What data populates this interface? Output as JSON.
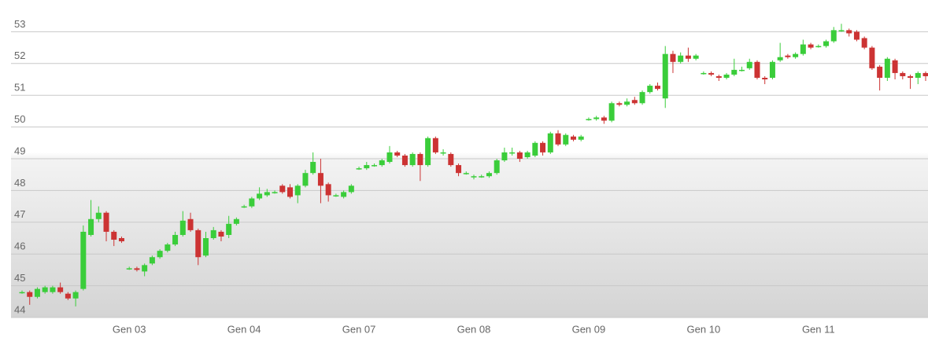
{
  "chart_data": {
    "type": "candlestick",
    "categories": [
      null,
      null,
      null,
      null,
      null,
      null,
      null,
      null,
      null,
      null,
      null,
      null,
      null,
      null,
      "Gen 03",
      null,
      null,
      null,
      null,
      null,
      null,
      null,
      null,
      null,
      null,
      null,
      null,
      null,
      null,
      "Gen 04",
      null,
      null,
      null,
      null,
      null,
      null,
      null,
      null,
      null,
      null,
      null,
      null,
      null,
      null,
      "Gen 07",
      null,
      null,
      null,
      null,
      null,
      null,
      null,
      null,
      null,
      null,
      null,
      null,
      null,
      null,
      "Gen 08",
      null,
      null,
      null,
      null,
      null,
      null,
      null,
      null,
      null,
      null,
      null,
      null,
      null,
      null,
      "Gen 09",
      null,
      null,
      null,
      null,
      null,
      null,
      null,
      null,
      null,
      null,
      null,
      null,
      null,
      null,
      "Gen 10",
      null,
      null,
      null,
      null,
      null,
      null,
      null,
      null,
      null,
      null,
      null,
      null,
      null,
      null,
      "Gen 11",
      null,
      null,
      null,
      null,
      null,
      null,
      null,
      null,
      null,
      null,
      null,
      null,
      null,
      null
    ],
    "open": [
      44.8,
      44.8,
      44.65,
      44.8,
      44.8,
      44.95,
      44.75,
      44.6,
      44.9,
      46.6,
      47.1,
      47.3,
      46.7,
      46.5,
      45.55,
      45.55,
      45.45,
      45.7,
      45.9,
      46.1,
      46.3,
      46.6,
      47.1,
      46.75,
      45.95,
      46.5,
      46.7,
      46.6,
      46.95,
      47.5,
      47.5,
      47.75,
      47.85,
      47.95,
      48.15,
      48.1,
      47.85,
      48.15,
      48.55,
      48.55,
      48.2,
      47.85,
      47.8,
      47.95,
      48.7,
      48.7,
      48.8,
      48.8,
      48.9,
      49.2,
      49.1,
      48.8,
      49.15,
      48.8,
      49.65,
      49.2,
      49.15,
      48.8,
      48.55,
      48.45,
      48.45,
      48.45,
      48.55,
      48.95,
      49.2,
      49.2,
      49.05,
      49.1,
      49.5,
      49.2,
      49.8,
      49.45,
      49.7,
      49.6,
      50.25,
      50.25,
      50.3,
      50.2,
      50.75,
      50.7,
      50.85,
      50.75,
      51.1,
      51.3,
      50.9,
      52.3,
      52.05,
      52.25,
      52.15,
      51.7,
      51.7,
      51.6,
      51.55,
      51.65,
      51.8,
      51.85,
      52.05,
      51.55,
      51.55,
      52.1,
      52.25,
      52.2,
      52.3,
      52.6,
      52.55,
      52.55,
      52.7,
      53.05,
      53.05,
      53.0,
      52.8,
      52.5,
      51.9,
      51.55,
      52.1,
      51.7,
      51.6,
      51.55,
      51.7
    ],
    "high": [
      44.85,
      44.85,
      44.95,
      45.0,
      45.0,
      45.1,
      44.8,
      44.85,
      46.9,
      47.7,
      47.5,
      47.35,
      46.75,
      46.55,
      45.6,
      45.6,
      45.7,
      45.95,
      46.15,
      46.35,
      46.7,
      47.35,
      47.3,
      46.8,
      46.7,
      46.85,
      46.75,
      47.2,
      47.15,
      47.55,
      47.8,
      48.1,
      48.05,
      48.0,
      48.2,
      48.2,
      48.2,
      48.65,
      49.2,
      49.0,
      48.25,
      47.9,
      48.0,
      48.2,
      48.75,
      48.9,
      48.85,
      49.0,
      49.4,
      49.25,
      49.15,
      49.2,
      49.2,
      49.7,
      49.7,
      49.3,
      49.2,
      48.85,
      48.6,
      48.5,
      48.5,
      48.6,
      49.0,
      49.35,
      49.35,
      49.25,
      49.25,
      49.55,
      49.55,
      49.85,
      49.9,
      49.8,
      49.75,
      49.75,
      50.3,
      50.35,
      50.35,
      50.8,
      50.8,
      50.9,
      50.95,
      51.15,
      51.35,
      51.4,
      52.55,
      52.4,
      52.35,
      52.5,
      52.3,
      51.75,
      51.75,
      51.65,
      51.7,
      52.15,
      51.9,
      52.15,
      52.1,
      51.6,
      52.1,
      52.65,
      52.3,
      52.35,
      52.75,
      52.65,
      52.6,
      52.75,
      53.15,
      53.25,
      53.1,
      53.05,
      52.85,
      52.55,
      51.95,
      52.2,
      52.15,
      51.75,
      51.65,
      51.75,
      51.75
    ],
    "low": [
      44.75,
      44.4,
      44.6,
      44.75,
      44.75,
      44.75,
      44.55,
      44.35,
      44.85,
      46.55,
      47.0,
      46.4,
      46.25,
      46.35,
      45.5,
      45.45,
      45.3,
      45.65,
      45.85,
      46.05,
      46.25,
      46.55,
      46.7,
      45.65,
      45.9,
      46.45,
      46.4,
      46.5,
      46.9,
      47.45,
      47.45,
      47.7,
      47.8,
      47.9,
      47.9,
      47.75,
      47.6,
      48.1,
      48.5,
      47.6,
      47.65,
      47.8,
      47.75,
      47.9,
      48.65,
      48.65,
      48.75,
      48.75,
      48.85,
      49.05,
      48.75,
      48.75,
      48.3,
      48.75,
      49.15,
      49.1,
      48.75,
      48.45,
      48.5,
      48.35,
      48.4,
      48.4,
      48.5,
      48.9,
      49.1,
      48.9,
      49.0,
      49.05,
      49.1,
      49.15,
      49.4,
      49.4,
      49.55,
      49.55,
      50.2,
      50.2,
      50.1,
      50.15,
      50.65,
      50.65,
      50.7,
      50.7,
      51.05,
      51.15,
      50.6,
      51.7,
      52.0,
      52.05,
      52.1,
      51.65,
      51.6,
      51.45,
      51.5,
      51.6,
      51.75,
      51.8,
      51.5,
      51.35,
      51.5,
      52.05,
      52.15,
      52.15,
      52.25,
      52.45,
      52.5,
      52.5,
      52.65,
      53.0,
      52.85,
      52.7,
      52.45,
      51.8,
      51.15,
      51.45,
      51.5,
      51.5,
      51.2,
      51.35,
      51.45
    ],
    "close": [
      44.8,
      44.65,
      44.9,
      44.95,
      44.95,
      44.8,
      44.6,
      44.8,
      46.7,
      47.1,
      47.3,
      46.7,
      46.45,
      46.4,
      45.55,
      45.5,
      45.65,
      45.9,
      46.1,
      46.3,
      46.6,
      47.05,
      46.75,
      45.9,
      46.5,
      46.75,
      46.55,
      46.95,
      47.1,
      47.5,
      47.75,
      47.9,
      47.95,
      47.95,
      47.95,
      47.8,
      48.15,
      48.55,
      48.9,
      48.15,
      47.85,
      47.85,
      47.95,
      48.15,
      48.7,
      48.8,
      48.8,
      48.95,
      49.2,
      49.1,
      48.8,
      49.15,
      48.8,
      49.65,
      49.2,
      49.2,
      48.8,
      48.55,
      48.55,
      48.45,
      48.45,
      48.55,
      48.95,
      49.2,
      49.2,
      49.0,
      49.2,
      49.5,
      49.2,
      49.8,
      49.45,
      49.75,
      49.6,
      49.7,
      50.25,
      50.3,
      50.2,
      50.75,
      50.7,
      50.8,
      50.75,
      51.1,
      51.3,
      51.2,
      52.3,
      52.05,
      52.25,
      52.15,
      52.25,
      51.7,
      51.65,
      51.55,
      51.65,
      51.8,
      51.8,
      52.05,
      51.55,
      51.5,
      52.05,
      52.2,
      52.2,
      52.3,
      52.6,
      52.5,
      52.55,
      52.7,
      53.05,
      53.05,
      52.95,
      52.75,
      52.5,
      51.85,
      51.55,
      52.15,
      51.7,
      51.6,
      51.55,
      51.7,
      51.6
    ],
    "up_color": "#3acd3a",
    "down_color": "#cc3333",
    "ylim": [
      44,
      54
    ],
    "yticks": [
      44,
      45,
      46,
      47,
      48,
      49,
      50,
      51,
      52,
      53
    ],
    "grid": true
  }
}
